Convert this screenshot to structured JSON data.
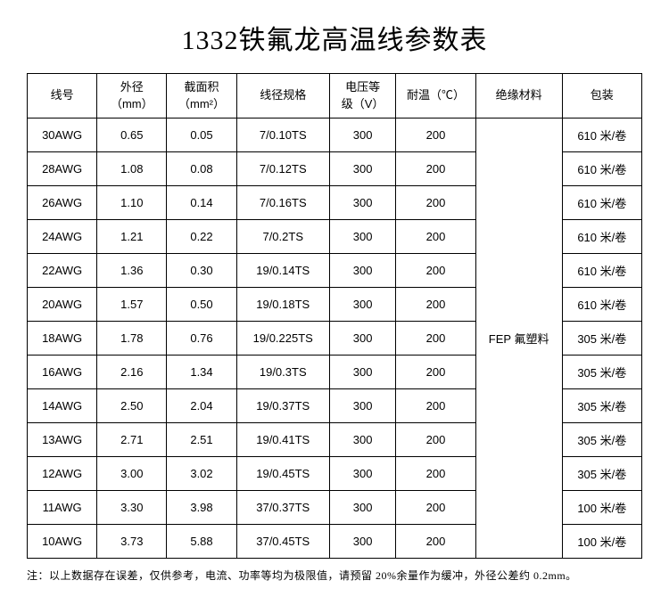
{
  "title": "1332铁氟龙高温线参数表",
  "table": {
    "columns": [
      {
        "label": "线号",
        "class": "col-1"
      },
      {
        "label": "外径\n（mm）",
        "class": "col-2"
      },
      {
        "label": "截面积\n（mm²）",
        "class": "col-3"
      },
      {
        "label": "线径规格",
        "class": "col-4"
      },
      {
        "label": "电压等\n级（V）",
        "class": "col-5"
      },
      {
        "label": "耐温（℃）",
        "class": "col-6"
      },
      {
        "label": "绝缘材料",
        "class": "col-7"
      },
      {
        "label": "包装",
        "class": "col-8"
      }
    ],
    "insulation": "FEP 氟塑料",
    "rows": [
      {
        "awg": "30AWG",
        "od": "0.65",
        "area": "0.05",
        "spec": "7/0.10TS",
        "volt": "300",
        "temp": "200",
        "pack": "610 米/卷"
      },
      {
        "awg": "28AWG",
        "od": "1.08",
        "area": "0.08",
        "spec": "7/0.12TS",
        "volt": "300",
        "temp": "200",
        "pack": "610 米/卷"
      },
      {
        "awg": "26AWG",
        "od": "1.10",
        "area": "0.14",
        "spec": "7/0.16TS",
        "volt": "300",
        "temp": "200",
        "pack": "610 米/卷"
      },
      {
        "awg": "24AWG",
        "od": "1.21",
        "area": "0.22",
        "spec": "7/0.2TS",
        "volt": "300",
        "temp": "200",
        "pack": "610 米/卷"
      },
      {
        "awg": "22AWG",
        "od": "1.36",
        "area": "0.30",
        "spec": "19/0.14TS",
        "volt": "300",
        "temp": "200",
        "pack": "610 米/卷"
      },
      {
        "awg": "20AWG",
        "od": "1.57",
        "area": "0.50",
        "spec": "19/0.18TS",
        "volt": "300",
        "temp": "200",
        "pack": "610 米/卷"
      },
      {
        "awg": "18AWG",
        "od": "1.78",
        "area": "0.76",
        "spec": "19/0.225TS",
        "volt": "300",
        "temp": "200",
        "pack": "305 米/卷"
      },
      {
        "awg": "16AWG",
        "od": "2.16",
        "area": "1.34",
        "spec": "19/0.3TS",
        "volt": "300",
        "temp": "200",
        "pack": "305 米/卷"
      },
      {
        "awg": "14AWG",
        "od": "2.50",
        "area": "2.04",
        "spec": "19/0.37TS",
        "volt": "300",
        "temp": "200",
        "pack": "305 米/卷"
      },
      {
        "awg": "13AWG",
        "od": "2.71",
        "area": "2.51",
        "spec": "19/0.41TS",
        "volt": "300",
        "temp": "200",
        "pack": "305 米/卷"
      },
      {
        "awg": "12AWG",
        "od": "3.00",
        "area": "3.02",
        "spec": "19/0.45TS",
        "volt": "300",
        "temp": "200",
        "pack": "305 米/卷"
      },
      {
        "awg": "11AWG",
        "od": "3.30",
        "area": "3.98",
        "spec": "37/0.37TS",
        "volt": "300",
        "temp": "200",
        "pack": "100 米/卷"
      },
      {
        "awg": "10AWG",
        "od": "3.73",
        "area": "5.88",
        "spec": "37/0.45TS",
        "volt": "300",
        "temp": "200",
        "pack": "100 米/卷"
      }
    ]
  },
  "footnote": "注：以上数据存在误差，仅供参考，电流、功率等均为极限值，请预留 20%余量作为缓冲，外径公差约 0.2mm。",
  "colors": {
    "border": "#000000",
    "background": "#ffffff",
    "text": "#000000"
  },
  "fontsize": {
    "title_pt": 30,
    "cell_pt": 13,
    "footnote_pt": 12
  }
}
